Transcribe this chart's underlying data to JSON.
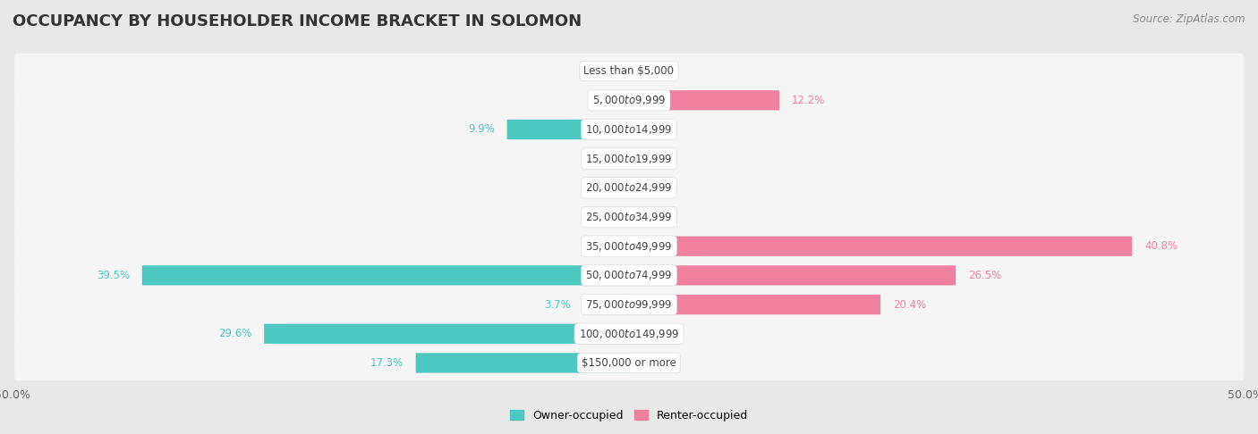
{
  "title": "OCCUPANCY BY HOUSEHOLDER INCOME BRACKET IN SOLOMON",
  "source": "Source: ZipAtlas.com",
  "categories": [
    "Less than $5,000",
    "$5,000 to $9,999",
    "$10,000 to $14,999",
    "$15,000 to $19,999",
    "$20,000 to $24,999",
    "$25,000 to $34,999",
    "$35,000 to $49,999",
    "$50,000 to $74,999",
    "$75,000 to $99,999",
    "$100,000 to $149,999",
    "$150,000 or more"
  ],
  "owner_values": [
    0.0,
    0.0,
    9.9,
    0.0,
    0.0,
    0.0,
    0.0,
    39.5,
    3.7,
    29.6,
    17.3
  ],
  "renter_values": [
    0.0,
    12.2,
    0.0,
    0.0,
    0.0,
    0.0,
    40.8,
    26.5,
    20.4,
    0.0,
    0.0
  ],
  "owner_color": "#4dc8c0",
  "renter_color": "#f080a0",
  "owner_label": "Owner-occupied",
  "renter_label": "Renter-occupied",
  "axis_limit": 50.0,
  "background_color": "#e8e8e8",
  "row_bg_color": "#f5f5f5",
  "bar_height": 0.68,
  "title_fontsize": 13,
  "label_fontsize": 8.5,
  "category_fontsize": 8.5,
  "axis_fontsize": 9,
  "source_fontsize": 8.5
}
